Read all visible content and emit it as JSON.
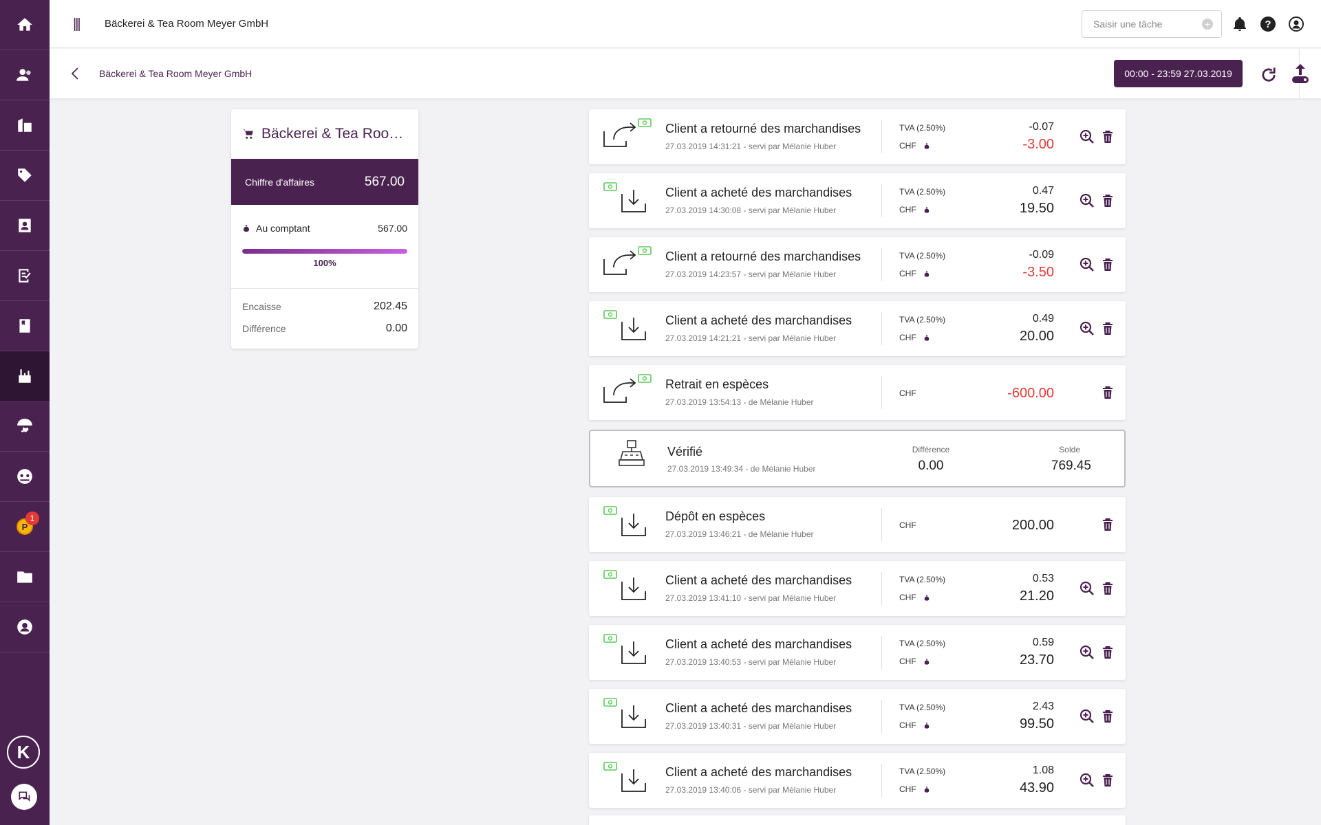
{
  "header": {
    "title": "Bäckerei & Tea Room Meyer GmbH",
    "task_placeholder": "Saisir une tâche"
  },
  "subheader": {
    "title": "Bäckerei & Tea Room Meyer GmbH",
    "date_range": "00:00 - 23:59 27.03.2019"
  },
  "sidebar": {
    "items": [
      {
        "icon": "home-icon"
      },
      {
        "icon": "users-icon"
      },
      {
        "icon": "buildings-icon"
      },
      {
        "icon": "tag-icon"
      },
      {
        "icon": "contacts-icon"
      },
      {
        "icon": "checklist-icon"
      },
      {
        "icon": "book-icon"
      },
      {
        "icon": "cash-register-icon",
        "active": true
      },
      {
        "icon": "umbrella-heart-icon"
      },
      {
        "icon": "group-icon"
      },
      {
        "icon": "points-icon",
        "badge": "1"
      },
      {
        "icon": "folder-icon"
      },
      {
        "icon": "account-icon"
      }
    ]
  },
  "summary": {
    "title": "Bäckerei & Tea Room...",
    "turnover_label": "Chiffre d'affaires",
    "turnover_value": "567.00",
    "cash_label": "Au comptant",
    "cash_value": "567.00",
    "cash_percent": 100,
    "cash_percent_label": "100%",
    "encaisse_label": "Encaisse",
    "encaisse_value": "202.45",
    "difference_label": "Différence",
    "difference_value": "0.00"
  },
  "transactions": [
    {
      "type": "return",
      "title": "Client a retourné des marchandises",
      "sub": "27.03.2019 14:31:21 - servi par Mélanie Huber",
      "vat_label": "TVA (2.50%)",
      "currency": "CHF",
      "vat": "-0.07",
      "amount": "-3.00",
      "negative": true,
      "zoom": true
    },
    {
      "type": "purchase",
      "title": "Client a acheté des marchandises",
      "sub": "27.03.2019 14:30:08 - servi par Mélanie Huber",
      "vat_label": "TVA (2.50%)",
      "currency": "CHF",
      "vat": "0.47",
      "amount": "19.50",
      "negative": false,
      "zoom": true
    },
    {
      "type": "return",
      "title": "Client a retourné des marchandises",
      "sub": "27.03.2019 14:23:57 - servi par Mélanie Huber",
      "vat_label": "TVA (2.50%)",
      "currency": "CHF",
      "vat": "-0.09",
      "amount": "-3.50",
      "negative": true,
      "zoom": true
    },
    {
      "type": "purchase",
      "title": "Client a acheté des marchandises",
      "sub": "27.03.2019 14:21:21 - servi par Mélanie Huber",
      "vat_label": "TVA (2.50%)",
      "currency": "CHF",
      "vat": "0.49",
      "amount": "20.00",
      "negative": false,
      "zoom": true
    },
    {
      "type": "return",
      "title": "Retrait en espèces",
      "sub": "27.03.2019 13:54:13 - de Mélanie Huber",
      "vat_label": "",
      "currency": "CHF",
      "vat": "",
      "amount": "-600.00",
      "negative": true,
      "zoom": false
    },
    {
      "type": "purchase",
      "title": "Dépôt en espèces",
      "sub": "27.03.2019 13:46:21 - de Mélanie Huber",
      "vat_label": "",
      "currency": "CHF",
      "vat": "",
      "amount": "200.00",
      "negative": false,
      "zoom": false
    },
    {
      "type": "purchase",
      "title": "Client a acheté des marchandises",
      "sub": "27.03.2019 13:41:10 - servi par Mélanie Huber",
      "vat_label": "TVA (2.50%)",
      "currency": "CHF",
      "vat": "0.53",
      "amount": "21.20",
      "negative": false,
      "zoom": true
    },
    {
      "type": "purchase",
      "title": "Client a acheté des marchandises",
      "sub": "27.03.2019 13:40:53 - servi par Mélanie Huber",
      "vat_label": "TVA (2.50%)",
      "currency": "CHF",
      "vat": "0.59",
      "amount": "23.70",
      "negative": false,
      "zoom": true
    },
    {
      "type": "purchase",
      "title": "Client a acheté des marchandises",
      "sub": "27.03.2019 13:40:31 - servi par Mélanie Huber",
      "vat_label": "TVA (2.50%)",
      "currency": "CHF",
      "vat": "2.43",
      "amount": "99.50",
      "negative": false,
      "zoom": true
    },
    {
      "type": "purchase",
      "title": "Client a acheté des marchandises",
      "sub": "27.03.2019 13:40:06 - servi par Mélanie Huber",
      "vat_label": "TVA (2.50%)",
      "currency": "CHF",
      "vat": "1.08",
      "amount": "43.90",
      "negative": false,
      "zoom": true
    }
  ],
  "verified": {
    "title": "Vérifié",
    "sub": "27.03.2019 13:49:34 - de Mélanie Huber",
    "difference_label": "Différence",
    "difference_value": "0.00",
    "balance_label": "Solde",
    "balance_value": "769.45"
  },
  "colors": {
    "brand": "#4a2250",
    "negative": "#e53935",
    "cash_green": "#5cc85a"
  }
}
